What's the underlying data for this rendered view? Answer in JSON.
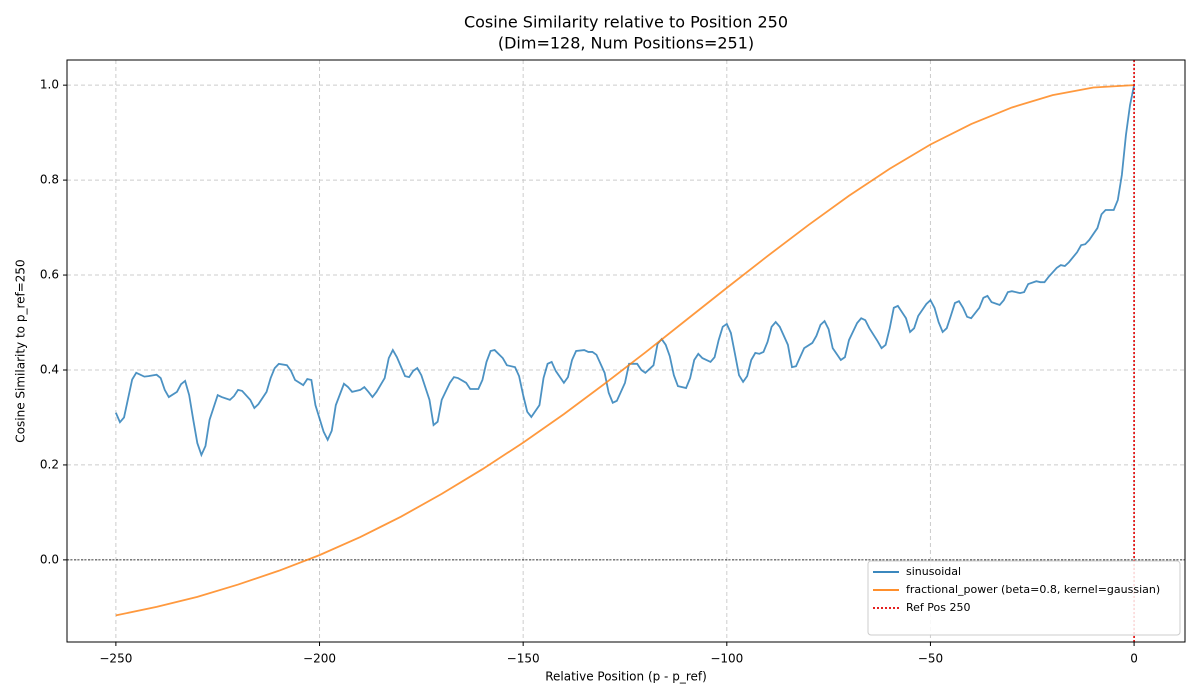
{
  "chart_data": {
    "type": "line",
    "title": "Cosine Similarity relative to Position 250",
    "subtitle": "(Dim=128, Num Positions=251)",
    "x_label": "Relative Position (p - p_ref)",
    "y_label": "Cosine Similarity to p_ref=250",
    "xlim": [
      -262,
      12.5
    ],
    "ylim": [
      -0.173,
      1.053
    ],
    "xticks": [
      {
        "value": -250,
        "label": "−250"
      },
      {
        "value": -200,
        "label": "−200"
      },
      {
        "value": -150,
        "label": "−150"
      },
      {
        "value": -100,
        "label": "−100"
      },
      {
        "value": -50,
        "label": "−50"
      },
      0
    ],
    "yticks": [
      {
        "value": 0,
        "label": "0.0"
      },
      0.2,
      0.4,
      0.6,
      0.8,
      {
        "value": 1,
        "label": "1.0"
      }
    ],
    "grid": true,
    "legend": "lower right",
    "hline": 0,
    "series": [
      {
        "name": "sinusoidal",
        "color": "#1f77b4",
        "x": [
          -250,
          -249,
          -248,
          -247,
          -246,
          -245,
          -243,
          -242,
          -240,
          -239,
          -238,
          -237,
          -235,
          -234,
          -233,
          -232,
          -231,
          -230,
          -229,
          -228,
          -227,
          -225,
          -224,
          -222,
          -221,
          -220,
          -219,
          -217,
          -216,
          -215,
          -213,
          -212,
          -211,
          -210,
          -208,
          -207,
          -206,
          -204,
          -203,
          -202,
          -201,
          -199,
          -198,
          -197,
          -196,
          -194,
          -193,
          -192,
          -190,
          -189,
          -188,
          -187,
          -186,
          -184,
          -183,
          -182,
          -181,
          -179,
          -178,
          -177,
          -176,
          -175,
          -173,
          -172,
          -171,
          -170,
          -168,
          -167,
          -166,
          -164,
          -163,
          -161,
          -160,
          -159,
          -158,
          -157,
          -155,
          -154,
          -152,
          -151,
          -150,
          -149,
          -148,
          -146,
          -145,
          -144,
          -143,
          -142,
          -140,
          -139,
          -138,
          -137,
          -135,
          -134,
          -133,
          -132,
          -130,
          -129,
          -128,
          -127,
          -125,
          -124,
          -122,
          -121,
          -120,
          -118,
          -117,
          -116,
          -115,
          -114,
          -113,
          -112,
          -110,
          -109,
          -108,
          -107,
          -106,
          -104,
          -103,
          -102,
          -101,
          -100,
          -99,
          -98,
          -97,
          -96,
          -95,
          -94,
          -93,
          -92,
          -91,
          -90,
          -89,
          -88,
          -87,
          -85,
          -84,
          -83,
          -82,
          -81,
          -79,
          -78,
          -77,
          -76,
          -75,
          -74,
          -72,
          -71,
          -70,
          -68,
          -67,
          -66,
          -65,
          -63,
          -62,
          -61,
          -60,
          -59,
          -58,
          -56,
          -55,
          -54,
          -53,
          -51,
          -50,
          -49,
          -48,
          -47,
          -46,
          -45,
          -44,
          -43,
          -42,
          -41,
          -40,
          -38,
          -37,
          -36,
          -35,
          -33,
          -32,
          -31,
          -30,
          -28,
          -27,
          -26,
          -24,
          -23,
          -22,
          -21,
          -19,
          -18,
          -17,
          -16,
          -14,
          -13,
          -12,
          -11,
          -9,
          -8,
          -7,
          -5,
          -4,
          -3,
          -2,
          -1,
          0
        ],
        "values": [
          0.31,
          0.29,
          0.3,
          0.34,
          0.38,
          0.394,
          0.386,
          0.387,
          0.39,
          0.383,
          0.358,
          0.343,
          0.354,
          0.37,
          0.377,
          0.347,
          0.295,
          0.246,
          0.221,
          0.24,
          0.295,
          0.347,
          0.343,
          0.337,
          0.345,
          0.358,
          0.356,
          0.337,
          0.32,
          0.328,
          0.354,
          0.383,
          0.404,
          0.413,
          0.41,
          0.398,
          0.379,
          0.368,
          0.381,
          0.379,
          0.326,
          0.27,
          0.253,
          0.272,
          0.326,
          0.371,
          0.364,
          0.354,
          0.358,
          0.364,
          0.354,
          0.343,
          0.354,
          0.383,
          0.425,
          0.442,
          0.427,
          0.387,
          0.385,
          0.398,
          0.404,
          0.389,
          0.337,
          0.284,
          0.291,
          0.337,
          0.373,
          0.385,
          0.383,
          0.373,
          0.36,
          0.36,
          0.379,
          0.417,
          0.44,
          0.442,
          0.425,
          0.41,
          0.406,
          0.387,
          0.347,
          0.312,
          0.301,
          0.326,
          0.383,
          0.413,
          0.417,
          0.398,
          0.373,
          0.385,
          0.421,
          0.44,
          0.442,
          0.438,
          0.438,
          0.432,
          0.394,
          0.352,
          0.331,
          0.335,
          0.373,
          0.413,
          0.413,
          0.4,
          0.394,
          0.41,
          0.455,
          0.465,
          0.453,
          0.429,
          0.389,
          0.366,
          0.362,
          0.383,
          0.421,
          0.434,
          0.425,
          0.417,
          0.427,
          0.463,
          0.491,
          0.497,
          0.478,
          0.434,
          0.389,
          0.375,
          0.387,
          0.421,
          0.436,
          0.434,
          0.438,
          0.459,
          0.491,
          0.501,
          0.491,
          0.453,
          0.406,
          0.408,
          0.427,
          0.446,
          0.457,
          0.472,
          0.495,
          0.503,
          0.486,
          0.446,
          0.421,
          0.427,
          0.463,
          0.499,
          0.509,
          0.505,
          0.488,
          0.461,
          0.446,
          0.453,
          0.488,
          0.531,
          0.535,
          0.509,
          0.48,
          0.488,
          0.514,
          0.539,
          0.547,
          0.531,
          0.501,
          0.48,
          0.488,
          0.514,
          0.541,
          0.545,
          0.531,
          0.512,
          0.509,
          0.531,
          0.552,
          0.556,
          0.543,
          0.537,
          0.547,
          0.564,
          0.566,
          0.562,
          0.564,
          0.581,
          0.587,
          0.585,
          0.585,
          0.596,
          0.615,
          0.621,
          0.619,
          0.627,
          0.648,
          0.663,
          0.665,
          0.674,
          0.699,
          0.728,
          0.737,
          0.737,
          0.758,
          0.811,
          0.895,
          0.958,
          1.0
        ]
      },
      {
        "name": "fractional_power (beta=0.8, kernel=gaussian)",
        "color": "#ff7f0e",
        "x": [
          -250,
          -240,
          -230,
          -220,
          -210,
          -200,
          -190,
          -180,
          -170,
          -160,
          -150,
          -140,
          -130,
          -120,
          -110,
          -100,
          -90,
          -80,
          -70,
          -60,
          -50,
          -40,
          -30,
          -20,
          -10,
          0
        ],
        "values": [
          -0.117,
          -0.099,
          -0.078,
          -0.052,
          -0.023,
          0.01,
          0.048,
          0.091,
          0.139,
          0.191,
          0.247,
          0.307,
          0.371,
          0.437,
          0.505,
          0.573,
          0.64,
          0.705,
          0.767,
          0.824,
          0.875,
          0.918,
          0.953,
          0.979,
          0.995,
          1.0
        ]
      }
    ],
    "vline": {
      "name": "Ref Pos 250",
      "color": "#e00000",
      "x": 0
    }
  }
}
